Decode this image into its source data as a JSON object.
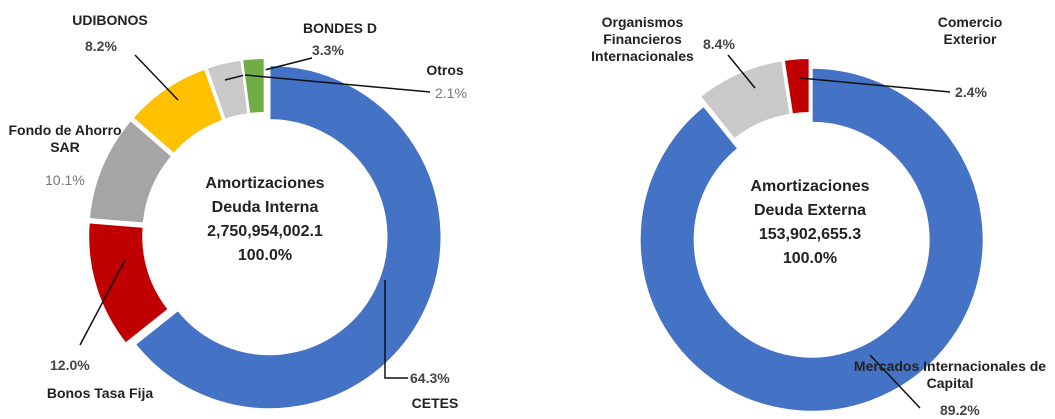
{
  "chart_data": [
    {
      "type": "pie",
      "center_text": [
        "Amortizaciones",
        "Deuda Interna",
        "2,750,954,002.1",
        "100.0%"
      ],
      "categories": [
        "CETES",
        "Bonos Tasa Fija",
        "Fondo de Ahorro SAR",
        "UDIBONOS",
        "BONDES D",
        "Otros"
      ],
      "values": [
        64.3,
        12.0,
        10.1,
        8.2,
        3.3,
        2.1
      ],
      "value_labels": [
        "64.3%",
        "12.0%",
        "10.1%",
        "8.2%",
        "3.3%",
        "2.1%"
      ],
      "colors": [
        "#4472c4",
        "#c00000",
        "#a5a5a5",
        "#ffc000",
        "#c9c9c9",
        "#70ad47"
      ]
    },
    {
      "type": "pie",
      "center_text": [
        "Amortizaciones",
        "Deuda Externa",
        "153,902,655.3",
        "100.0%"
      ],
      "categories": [
        "Mercados Internacionales de Capital",
        "Organismos Financieros Internacionales",
        "Comercio Exterior"
      ],
      "values": [
        89.2,
        8.4,
        2.4
      ],
      "value_labels": [
        "89.2%",
        "8.4%",
        "2.4%"
      ],
      "colors": [
        "#4472c4",
        "#c9c9c9",
        "#c00000"
      ]
    }
  ]
}
